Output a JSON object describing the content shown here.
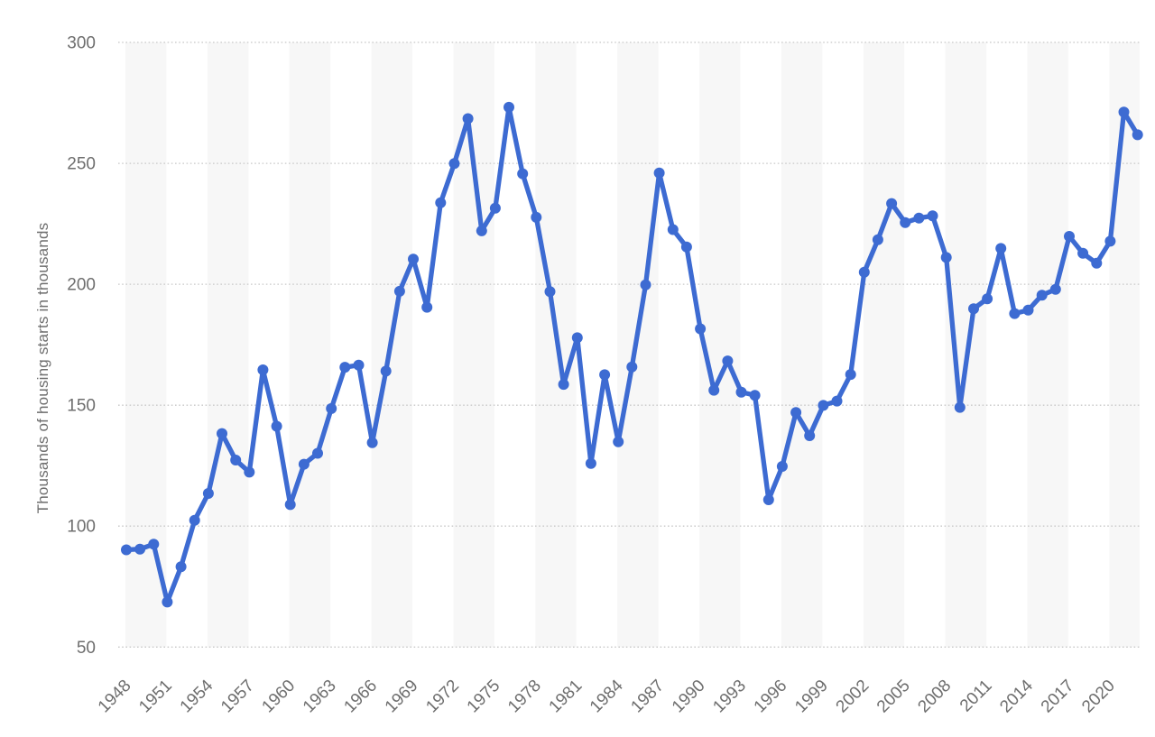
{
  "chart_data": {
    "type": "line",
    "title": "",
    "xlabel": "",
    "ylabel": "Thousands of housing starts in thousands",
    "ylim": [
      50,
      300
    ],
    "yticks": [
      50,
      100,
      150,
      200,
      250,
      300
    ],
    "xtick_labels": [
      "1948",
      "1951",
      "1954",
      "1957",
      "1960",
      "1963",
      "1966",
      "1969",
      "1972",
      "1975",
      "1978",
      "1981",
      "1984",
      "1987",
      "1990",
      "1993",
      "1996",
      "1999",
      "2002",
      "2005",
      "2008",
      "2011",
      "2014",
      "2017",
      "2020"
    ],
    "grid": "horizontal-dotted",
    "legend_position": "none",
    "plot_background": "alternating 3-year vertical bands, first band shaded",
    "years": [
      1948,
      1949,
      1950,
      1951,
      1952,
      1953,
      1954,
      1955,
      1956,
      1957,
      1958,
      1959,
      1960,
      1961,
      1962,
      1963,
      1964,
      1965,
      1966,
      1967,
      1968,
      1969,
      1970,
      1971,
      1972,
      1973,
      1974,
      1975,
      1976,
      1977,
      1978,
      1979,
      1980,
      1981,
      1982,
      1983,
      1984,
      1985,
      1986,
      1987,
      1988,
      1989,
      1990,
      1991,
      1992,
      1993,
      1994,
      1995,
      1996,
      1997,
      1998,
      1999,
      2000,
      2001,
      2002,
      2003,
      2004,
      2005,
      2006,
      2007,
      2008,
      2009,
      2010,
      2011,
      2012,
      2013,
      2014,
      2015,
      2016,
      2017,
      2018,
      2019,
      2020,
      2021,
      2022
    ],
    "values": [
      90.2,
      90.5,
      92.5,
      68.6,
      83.2,
      102.4,
      113.5,
      138.3,
      127.3,
      122.3,
      164.6,
      141.3,
      108.9,
      125.6,
      130.1,
      148.6,
      165.7,
      166.6,
      134.5,
      164.1,
      197.1,
      210.4,
      190.5,
      233.7,
      249.9,
      268.5,
      222.1,
      231.5,
      273.2,
      245.7,
      227.7,
      197.0,
      158.6,
      177.9,
      125.9,
      162.6,
      134.9,
      165.8,
      199.8,
      246.0,
      222.6,
      215.4,
      181.6,
      156.2,
      168.3,
      155.4,
      154.1,
      110.9,
      124.7,
      147.0,
      137.4,
      149.9,
      151.7,
      162.7,
      205.0,
      218.4,
      233.4,
      225.5,
      227.4,
      228.3,
      211.1,
      149.1,
      189.9,
      194.0,
      214.8,
      187.9,
      189.3,
      195.5,
      197.9,
      219.8,
      212.8,
      208.7,
      217.8,
      271.2,
      261.8
    ],
    "colors": {
      "line": "#3D6BD2",
      "marker": "#3D6BD2",
      "band": "#F7F7F7",
      "grid": "#C8C8C8",
      "tick_label": "#6E6E6E"
    }
  }
}
